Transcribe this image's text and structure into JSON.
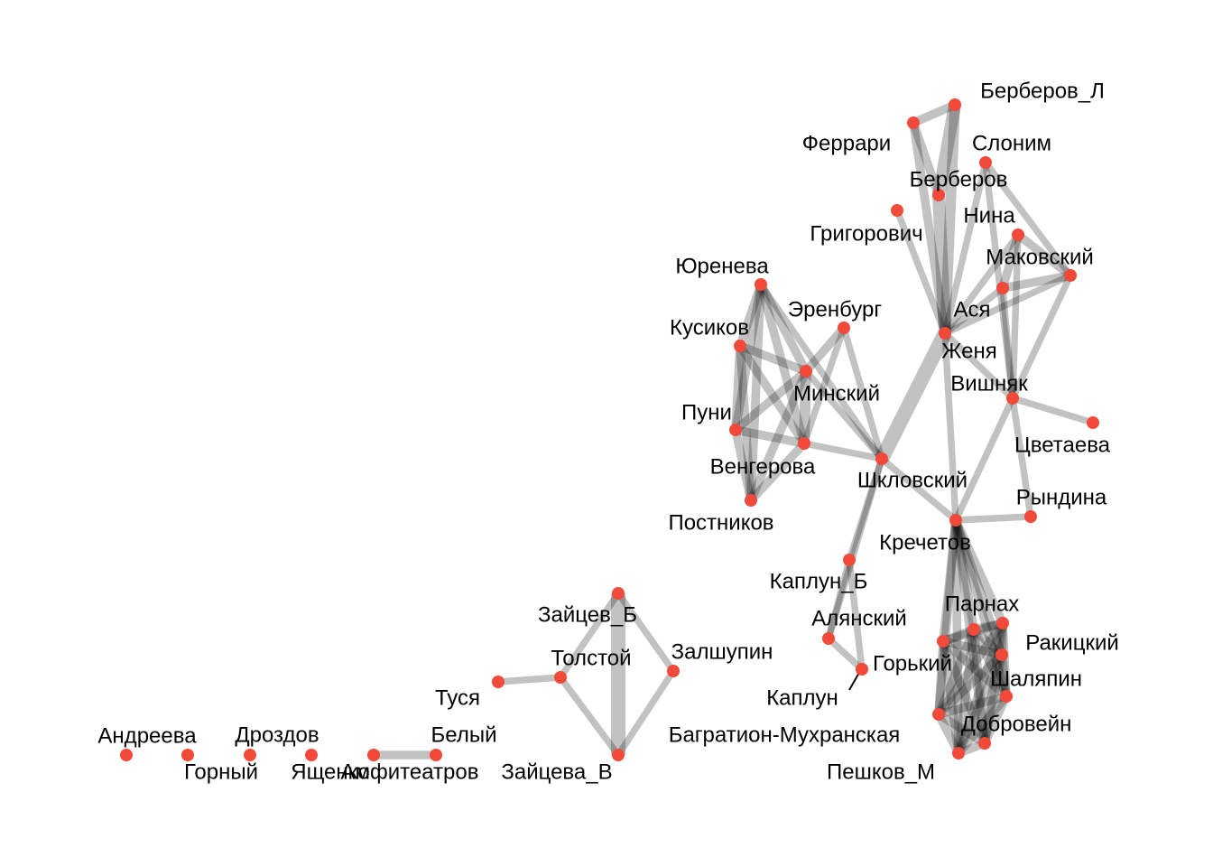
{
  "colors": {
    "node": "#F24A3A",
    "edge": "#9E9E9E",
    "text": "#000000",
    "background": "#FFFFFF"
  },
  "nodes": [
    {
      "id": "berberov_l",
      "label": "Берберов_Л"
    },
    {
      "id": "ferrari",
      "label": "Феррари"
    },
    {
      "id": "slonim",
      "label": "Слоним"
    },
    {
      "id": "berberov",
      "label": "Берберов"
    },
    {
      "id": "grigorovich",
      "label": "Григорович"
    },
    {
      "id": "nina",
      "label": "Нина"
    },
    {
      "id": "makovsky",
      "label": "Маковский"
    },
    {
      "id": "asya",
      "label": "Ася"
    },
    {
      "id": "zhenya",
      "label": "Женя"
    },
    {
      "id": "yureneva",
      "label": "Юренева"
    },
    {
      "id": "erenburg",
      "label": "Эренбург"
    },
    {
      "id": "kusikov",
      "label": "Кусиков"
    },
    {
      "id": "minsky",
      "label": "Минский"
    },
    {
      "id": "vishnyak",
      "label": "Вишняк"
    },
    {
      "id": "puni",
      "label": "Пуни"
    },
    {
      "id": "tsvetaeva",
      "label": "Цветаева"
    },
    {
      "id": "vengerova",
      "label": "Венгерова"
    },
    {
      "id": "shklovsky",
      "label": "Шкловский"
    },
    {
      "id": "postnikov",
      "label": "Постников"
    },
    {
      "id": "ryndina",
      "label": "Рындина"
    },
    {
      "id": "krechetov",
      "label": "Кречетов"
    },
    {
      "id": "kaplun_b",
      "label": "Каплун_Б"
    },
    {
      "id": "parnakh",
      "label": "Парнах"
    },
    {
      "id": "zaitsev_b",
      "label": "Зайцев_Б"
    },
    {
      "id": "alyansky",
      "label": "Алянский"
    },
    {
      "id": "rakitsky",
      "label": "Ракицкий"
    },
    {
      "id": "tolstoy",
      "label": "Толстой"
    },
    {
      "id": "zalshupin",
      "label": "Залшупин"
    },
    {
      "id": "gorky",
      "label": "Горький"
    },
    {
      "id": "shalyapin",
      "label": "Шаляпин"
    },
    {
      "id": "tusya",
      "label": "Туся"
    },
    {
      "id": "kaplun",
      "label": "Каплун"
    },
    {
      "id": "dobrovein",
      "label": "Добровейн"
    },
    {
      "id": "andreeva",
      "label": "Андреева"
    },
    {
      "id": "drozdov",
      "label": "Дроздов"
    },
    {
      "id": "bely",
      "label": "Белый"
    },
    {
      "id": "bagration",
      "label": "Багратион-Мухранская"
    },
    {
      "id": "gorny",
      "label": "Горный"
    },
    {
      "id": "yashchenko",
      "label": "Ященко"
    },
    {
      "id": "amfiteatrov",
      "label": "Амфитеатров"
    },
    {
      "id": "zaitseva_v",
      "label": "Зайцева_В"
    },
    {
      "id": "peshkov_m",
      "label": "Пешков_М"
    },
    {
      "id": "g1",
      "label": ""
    },
    {
      "id": "g2",
      "label": ""
    },
    {
      "id": "g3",
      "label": ""
    },
    {
      "id": "g4",
      "label": ""
    },
    {
      "id": "g5",
      "label": ""
    }
  ],
  "edges": [
    [
      "ferrari",
      "berberov_l",
      3
    ],
    [
      "ferrari",
      "berberov",
      3
    ],
    [
      "ferrari",
      "asya",
      3
    ],
    [
      "berberov_l",
      "berberov",
      5
    ],
    [
      "berberov_l",
      "asya",
      4
    ],
    [
      "berberov",
      "asya",
      5
    ],
    [
      "slonim",
      "makovsky",
      2
    ],
    [
      "slonim",
      "asya",
      2
    ],
    [
      "slonim",
      "vishnyak",
      2
    ],
    [
      "grigorovich",
      "asya",
      2
    ],
    [
      "nina",
      "makovsky",
      3
    ],
    [
      "nina",
      "g2",
      3
    ],
    [
      "nina",
      "asya",
      2
    ],
    [
      "nina",
      "vishnyak",
      2
    ],
    [
      "makovsky",
      "g2",
      3
    ],
    [
      "makovsky",
      "asya",
      2
    ],
    [
      "makovsky",
      "vishnyak",
      2
    ],
    [
      "g2",
      "asya",
      2
    ],
    [
      "g2",
      "vishnyak",
      2
    ],
    [
      "asya",
      "shklovsky",
      6
    ],
    [
      "asya",
      "krechetov",
      2
    ],
    [
      "asya",
      "vishnyak",
      2
    ],
    [
      "vishnyak",
      "tsvetaeva",
      2
    ],
    [
      "vishnyak",
      "ryndina",
      2
    ],
    [
      "vishnyak",
      "krechetov",
      2
    ],
    [
      "yureneva",
      "kusikov",
      3
    ],
    [
      "yureneva",
      "minsky",
      3
    ],
    [
      "yureneva",
      "puni",
      3
    ],
    [
      "yureneva",
      "vengerova",
      3
    ],
    [
      "yureneva",
      "postnikov",
      3
    ],
    [
      "yureneva",
      "shklovsky",
      2
    ],
    [
      "kusikov",
      "minsky",
      3
    ],
    [
      "kusikov",
      "puni",
      3
    ],
    [
      "kusikov",
      "vengerova",
      3
    ],
    [
      "kusikov",
      "postnikov",
      3
    ],
    [
      "erenburg",
      "minsky",
      3
    ],
    [
      "erenburg",
      "vengerova",
      2
    ],
    [
      "erenburg",
      "shklovsky",
      2
    ],
    [
      "minsky",
      "puni",
      3
    ],
    [
      "minsky",
      "vengerova",
      4
    ],
    [
      "minsky",
      "postnikov",
      3
    ],
    [
      "minsky",
      "shklovsky",
      2
    ],
    [
      "puni",
      "vengerova",
      3
    ],
    [
      "puni",
      "postnikov",
      3
    ],
    [
      "vengerova",
      "postnikov",
      3
    ],
    [
      "vengerova",
      "shklovsky",
      2
    ],
    [
      "shklovsky",
      "krechetov",
      2
    ],
    [
      "shklovsky",
      "kaplun_b",
      2
    ],
    [
      "shklovsky",
      "alyansky",
      2
    ],
    [
      "krechetov",
      "ryndina",
      2
    ],
    [
      "krechetov",
      "g3",
      3
    ],
    [
      "krechetov",
      "parnakh",
      3
    ],
    [
      "krechetov",
      "g4",
      3
    ],
    [
      "krechetov",
      "shalyapin",
      3
    ],
    [
      "krechetov",
      "g1",
      3
    ],
    [
      "krechetov",
      "dobrovein",
      3
    ],
    [
      "krechetov",
      "peshkov_m",
      3
    ],
    [
      "krechetov",
      "rakitsky",
      3
    ],
    [
      "g3",
      "parnakh",
      3
    ],
    [
      "g3",
      "g4",
      3
    ],
    [
      "g3",
      "rakitsky",
      3
    ],
    [
      "g3",
      "shalyapin",
      3
    ],
    [
      "g3",
      "g1",
      3
    ],
    [
      "g3",
      "dobrovein",
      3
    ],
    [
      "g3",
      "peshkov_m",
      3
    ],
    [
      "parnakh",
      "g4",
      3
    ],
    [
      "parnakh",
      "rakitsky",
      3
    ],
    [
      "parnakh",
      "shalyapin",
      3
    ],
    [
      "parnakh",
      "g1",
      3
    ],
    [
      "parnakh",
      "dobrovein",
      3
    ],
    [
      "parnakh",
      "peshkov_m",
      3
    ],
    [
      "g4",
      "rakitsky",
      3
    ],
    [
      "g4",
      "shalyapin",
      3
    ],
    [
      "g4",
      "g1",
      3
    ],
    [
      "g4",
      "dobrovein",
      3
    ],
    [
      "g4",
      "peshkov_m",
      3
    ],
    [
      "rakitsky",
      "shalyapin",
      3
    ],
    [
      "rakitsky",
      "g1",
      3
    ],
    [
      "rakitsky",
      "dobrovein",
      3
    ],
    [
      "rakitsky",
      "peshkov_m",
      3
    ],
    [
      "shalyapin",
      "g1",
      3
    ],
    [
      "shalyapin",
      "dobrovein",
      3
    ],
    [
      "shalyapin",
      "peshkov_m",
      3
    ],
    [
      "g1",
      "dobrovein",
      3
    ],
    [
      "g1",
      "peshkov_m",
      3
    ],
    [
      "dobrovein",
      "peshkov_m",
      3
    ],
    [
      "kaplun_b",
      "alyansky",
      2
    ],
    [
      "kaplun_b",
      "gorky",
      2
    ],
    [
      "alyansky",
      "gorky",
      2
    ],
    [
      "zaitsev_b",
      "zaitseva_v",
      6
    ],
    [
      "zaitsev_b",
      "tolstoy",
      2
    ],
    [
      "zaitsev_b",
      "zalshupin",
      2
    ],
    [
      "tolstoy",
      "tusya",
      2
    ],
    [
      "tolstoy",
      "zaitseva_v",
      2
    ],
    [
      "zalshupin",
      "zaitseva_v",
      2
    ],
    [
      "amfiteatrov",
      "bely",
      3
    ]
  ]
}
